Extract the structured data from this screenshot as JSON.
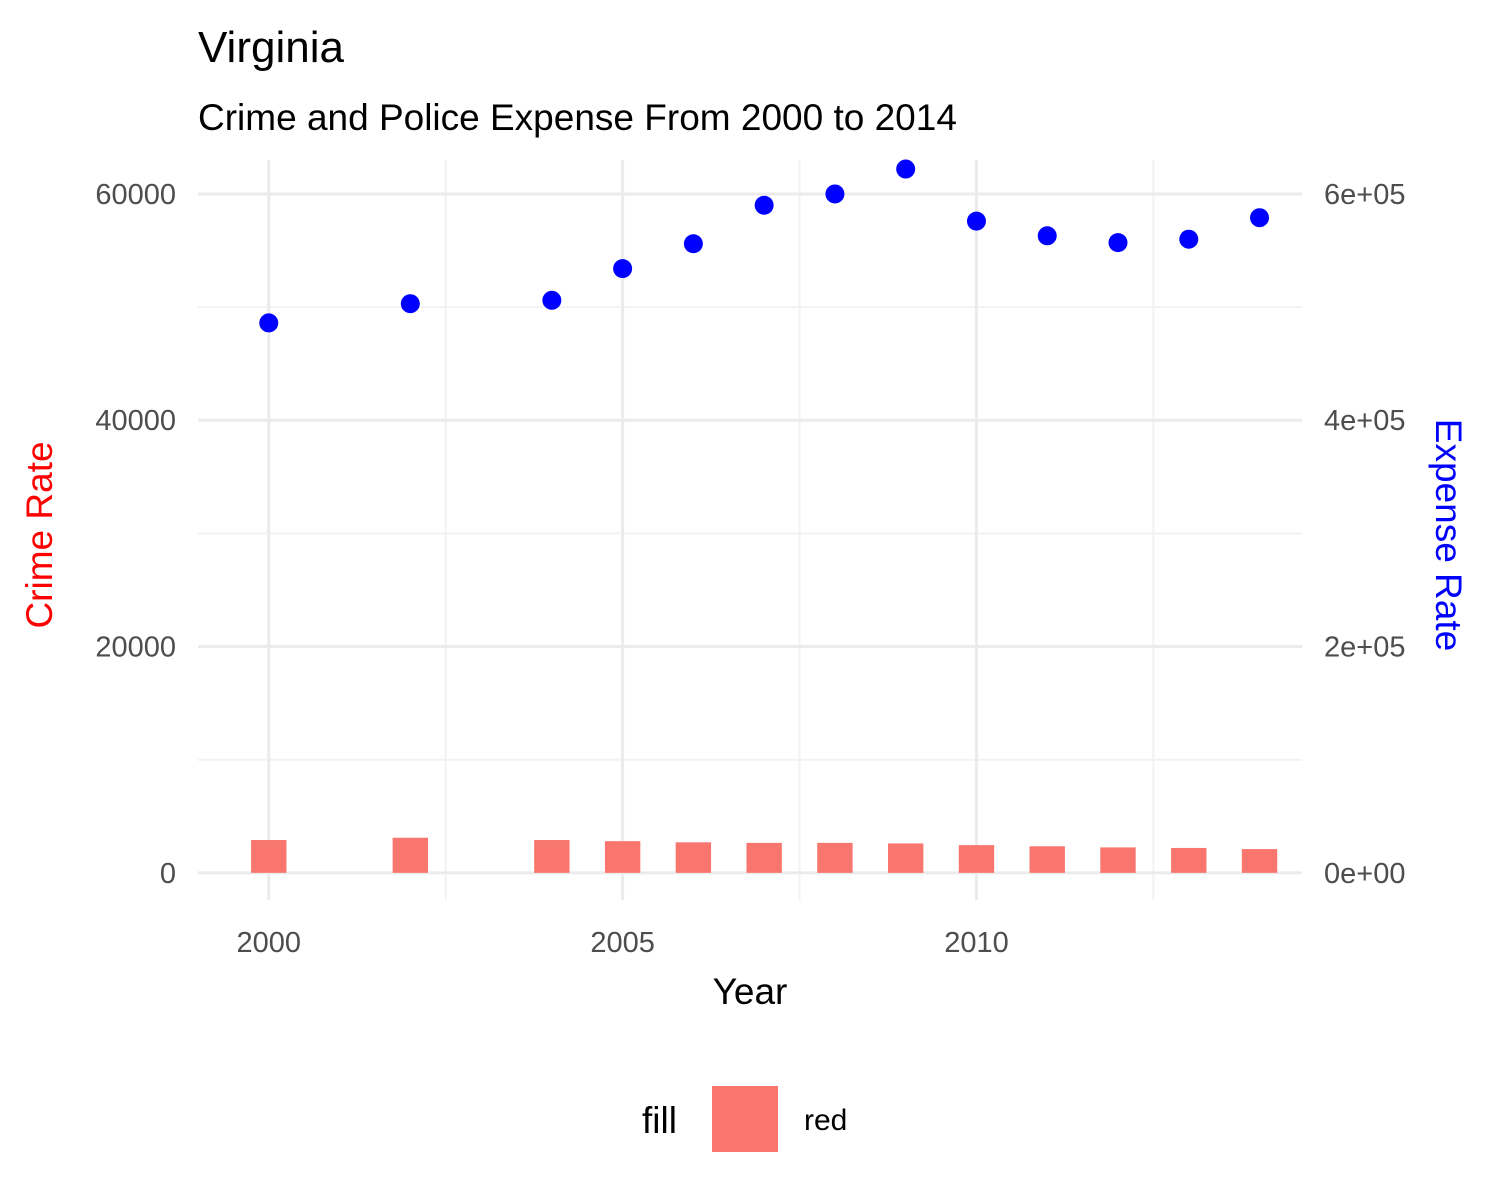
{
  "chart_data": {
    "type": "bar",
    "title": "Virginia",
    "subtitle": "Crime and Police Expense From 2000 to 2014",
    "xlabel": "Year",
    "ylabel": "Crime Rate",
    "ylabel_right": "Expense Rate",
    "ylabel_color": "#ff0000",
    "ylabel_right_color": "#0000ff",
    "x_ticks": [
      "2000",
      "2005",
      "2010"
    ],
    "y_ticks": [
      "0",
      "20000",
      "40000",
      "60000"
    ],
    "y_right_ticks": [
      "0e+00",
      "2e+05",
      "4e+05",
      "6e+05"
    ],
    "xlim": [
      1999,
      2014.6
    ],
    "ylim": [
      -2400,
      63000
    ],
    "y_right_ratio": 10,
    "grid": true,
    "legend": {
      "title": "fill",
      "position": "bottom",
      "entries": [
        {
          "label": "red",
          "color": "#f8766d"
        }
      ]
    },
    "series": [
      {
        "kind": "bar",
        "axis": "left",
        "color": "#f8766d",
        "x": [
          2000,
          2002,
          2004,
          2005,
          2006,
          2007,
          2008,
          2009,
          2010,
          2011,
          2012,
          2013,
          2014
        ],
        "values": [
          2900,
          3100,
          2900,
          2800,
          2700,
          2650,
          2650,
          2600,
          2450,
          2350,
          2250,
          2200,
          2100
        ]
      },
      {
        "kind": "point",
        "axis": "right",
        "color": "#0000ff",
        "x": [
          2000,
          2002,
          2004,
          2005,
          2006,
          2007,
          2008,
          2009,
          2010,
          2011,
          2012,
          2013,
          2014
        ],
        "values": [
          486000,
          503000,
          506000,
          534000,
          556000,
          590000,
          600000,
          622000,
          576000,
          563000,
          557000,
          560000,
          579000
        ]
      }
    ]
  }
}
